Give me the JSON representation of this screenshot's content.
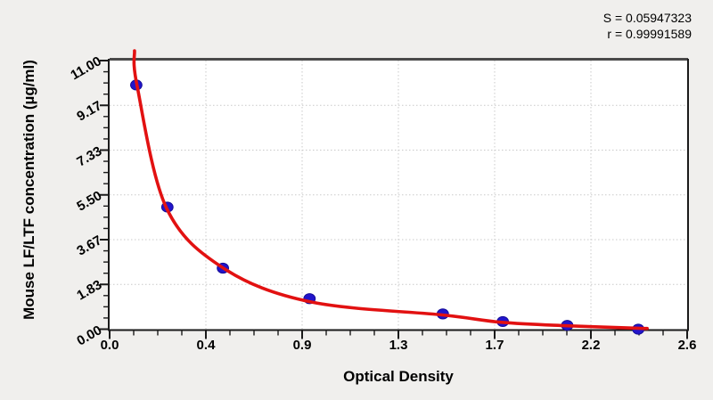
{
  "figure": {
    "background": "#f0efed"
  },
  "annotation": {
    "s_value": "S = 0.05947323",
    "r_value": "r = 0.99991589"
  },
  "chart_data": {
    "type": "scatter",
    "title": "",
    "xlabel": "Optical Density",
    "ylabel": "Mouse LF/LTF concentration (µg/ml)",
    "xlim": [
      0,
      2.6
    ],
    "ylim": [
      0,
      11
    ],
    "x_ticks": {
      "values": [
        0,
        0.4333,
        0.8667,
        1.3,
        1.7333,
        2.1667,
        2.6
      ],
      "labels": [
        "0.0",
        "0.4",
        "0.9",
        "1.3",
        "1.7",
        "2.2",
        "2.6"
      ]
    },
    "y_ticks": {
      "values": [
        0,
        1.8333,
        3.6667,
        5.5,
        7.3333,
        9.1667,
        11
      ],
      "labels": [
        "0.00",
        "1.83",
        "3.67",
        "5.50",
        "7.33",
        "9.17",
        "11.00"
      ]
    },
    "minor_tick_divisions": 4,
    "grid": {
      "style": "dotted",
      "on_major_ticks": true
    },
    "legend": "none",
    "stats": {
      "S": 0.05947323,
      "r": 0.99991589
    },
    "standards": {
      "name": "standard points (OD vs concentration µg/ml)",
      "od": [
        0.12,
        0.26,
        0.51,
        0.9,
        1.5,
        1.77,
        2.06,
        2.38
      ],
      "conc": [
        10,
        5,
        2.5,
        1.25,
        0.625,
        0.3125,
        0.15625,
        0
      ]
    },
    "fit_curve": {
      "name": "fitted standard curve",
      "points": [
        [
          0.112,
          11.4
        ],
        [
          0.124,
          9.95
        ],
        [
          0.256,
          4.96
        ],
        [
          0.514,
          2.49
        ],
        [
          0.903,
          1.12
        ],
        [
          1.501,
          0.58
        ],
        [
          1.766,
          0.28
        ],
        [
          2.059,
          0.14
        ],
        [
          2.379,
          0.04
        ],
        [
          2.42,
          0.03
        ]
      ]
    },
    "colors": {
      "curve": "#e21111",
      "point_fill": "#2214cb",
      "point_edge": "#140c96",
      "plot_background": "#ffffff",
      "frame": "#1a1a1a",
      "frame_top": "#4a4a4a",
      "grid": "#c9c9c9",
      "text": "#000000"
    }
  }
}
